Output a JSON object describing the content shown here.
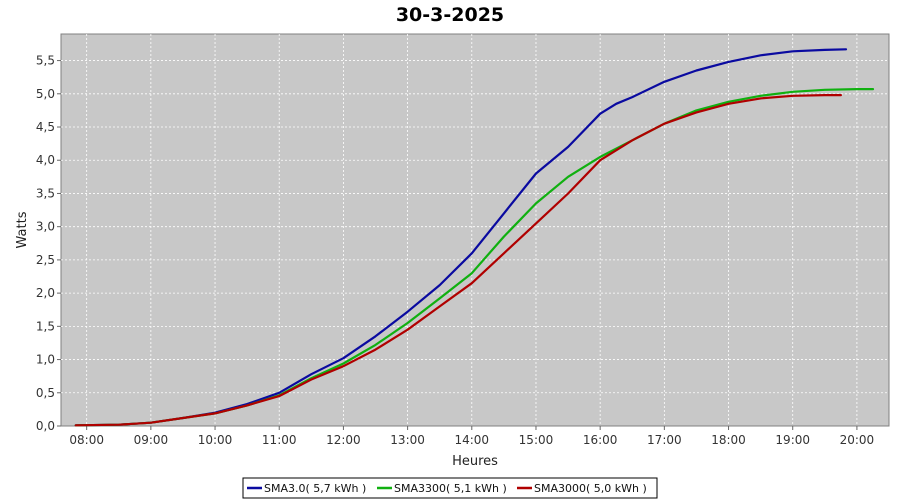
{
  "chart_data": {
    "type": "line",
    "title": "30-3-2025",
    "xlabel": "Heures",
    "ylabel": "Watts",
    "xlim": [
      7.6,
      20.5
    ],
    "ylim": [
      0,
      5.9
    ],
    "grid": true,
    "legend_position": "bottom",
    "x_ticks": [
      {
        "v": 8,
        "label": "08:00"
      },
      {
        "v": 9,
        "label": "09:00"
      },
      {
        "v": 10,
        "label": "10:00"
      },
      {
        "v": 11,
        "label": "11:00"
      },
      {
        "v": 12,
        "label": "12:00"
      },
      {
        "v": 13,
        "label": "13:00"
      },
      {
        "v": 14,
        "label": "14:00"
      },
      {
        "v": 15,
        "label": "15:00"
      },
      {
        "v": 16,
        "label": "16:00"
      },
      {
        "v": 17,
        "label": "17:00"
      },
      {
        "v": 18,
        "label": "18:00"
      },
      {
        "v": 19,
        "label": "19:00"
      },
      {
        "v": 20,
        "label": "20:00"
      }
    ],
    "y_ticks": [
      {
        "v": 0,
        "label": "0,0"
      },
      {
        "v": 0.5,
        "label": "0,5"
      },
      {
        "v": 1,
        "label": "1,0"
      },
      {
        "v": 1.5,
        "label": "1,5"
      },
      {
        "v": 2,
        "label": "2,0"
      },
      {
        "v": 2.5,
        "label": "2,5"
      },
      {
        "v": 3,
        "label": "3,0"
      },
      {
        "v": 3.5,
        "label": "3,5"
      },
      {
        "v": 4,
        "label": "4,0"
      },
      {
        "v": 4.5,
        "label": "4,5"
      },
      {
        "v": 5,
        "label": "5,0"
      },
      {
        "v": 5.5,
        "label": "5,5"
      }
    ],
    "series": [
      {
        "name": "SMA3.0( 5,7 kWh )",
        "color": "#0a0aa0",
        "x": [
          7.83,
          8.5,
          9.0,
          9.5,
          10.0,
          10.5,
          11.0,
          11.5,
          12.0,
          12.5,
          13.0,
          13.5,
          14.0,
          14.5,
          15.0,
          15.5,
          16.0,
          16.25,
          16.5,
          17.0,
          17.5,
          18.0,
          18.5,
          19.0,
          19.5,
          19.83
        ],
        "y": [
          0.01,
          0.02,
          0.05,
          0.12,
          0.2,
          0.33,
          0.5,
          0.78,
          1.02,
          1.35,
          1.72,
          2.12,
          2.6,
          3.2,
          3.8,
          4.2,
          4.7,
          4.85,
          4.95,
          5.18,
          5.35,
          5.48,
          5.58,
          5.64,
          5.66,
          5.67
        ]
      },
      {
        "name": "SMA3300( 5,1 kWh )",
        "color": "#10b010",
        "x": [
          7.83,
          8.5,
          9.0,
          9.5,
          10.0,
          10.5,
          11.0,
          11.5,
          12.0,
          12.5,
          13.0,
          13.5,
          14.0,
          14.5,
          15.0,
          15.5,
          16.0,
          16.5,
          17.0,
          17.5,
          18.0,
          18.5,
          19.0,
          19.5,
          20.0,
          20.25
        ],
        "y": [
          0.01,
          0.02,
          0.05,
          0.12,
          0.19,
          0.31,
          0.46,
          0.72,
          0.94,
          1.22,
          1.55,
          1.92,
          2.3,
          2.85,
          3.35,
          3.75,
          4.05,
          4.3,
          4.55,
          4.75,
          4.88,
          4.97,
          5.03,
          5.06,
          5.07,
          5.07
        ]
      },
      {
        "name": "SMA3000( 5,0 kWh )",
        "color": "#b00000",
        "x": [
          7.83,
          8.5,
          9.0,
          9.5,
          10.0,
          10.5,
          11.0,
          11.5,
          12.0,
          12.5,
          13.0,
          13.5,
          14.0,
          14.5,
          15.0,
          15.5,
          16.0,
          16.5,
          17.0,
          17.5,
          18.0,
          18.5,
          19.0,
          19.5,
          19.75
        ],
        "y": [
          0.01,
          0.02,
          0.05,
          0.12,
          0.19,
          0.31,
          0.45,
          0.7,
          0.9,
          1.15,
          1.45,
          1.8,
          2.15,
          2.6,
          3.05,
          3.5,
          4.0,
          4.3,
          4.55,
          4.72,
          4.85,
          4.93,
          4.97,
          4.98,
          4.98
        ]
      }
    ]
  }
}
